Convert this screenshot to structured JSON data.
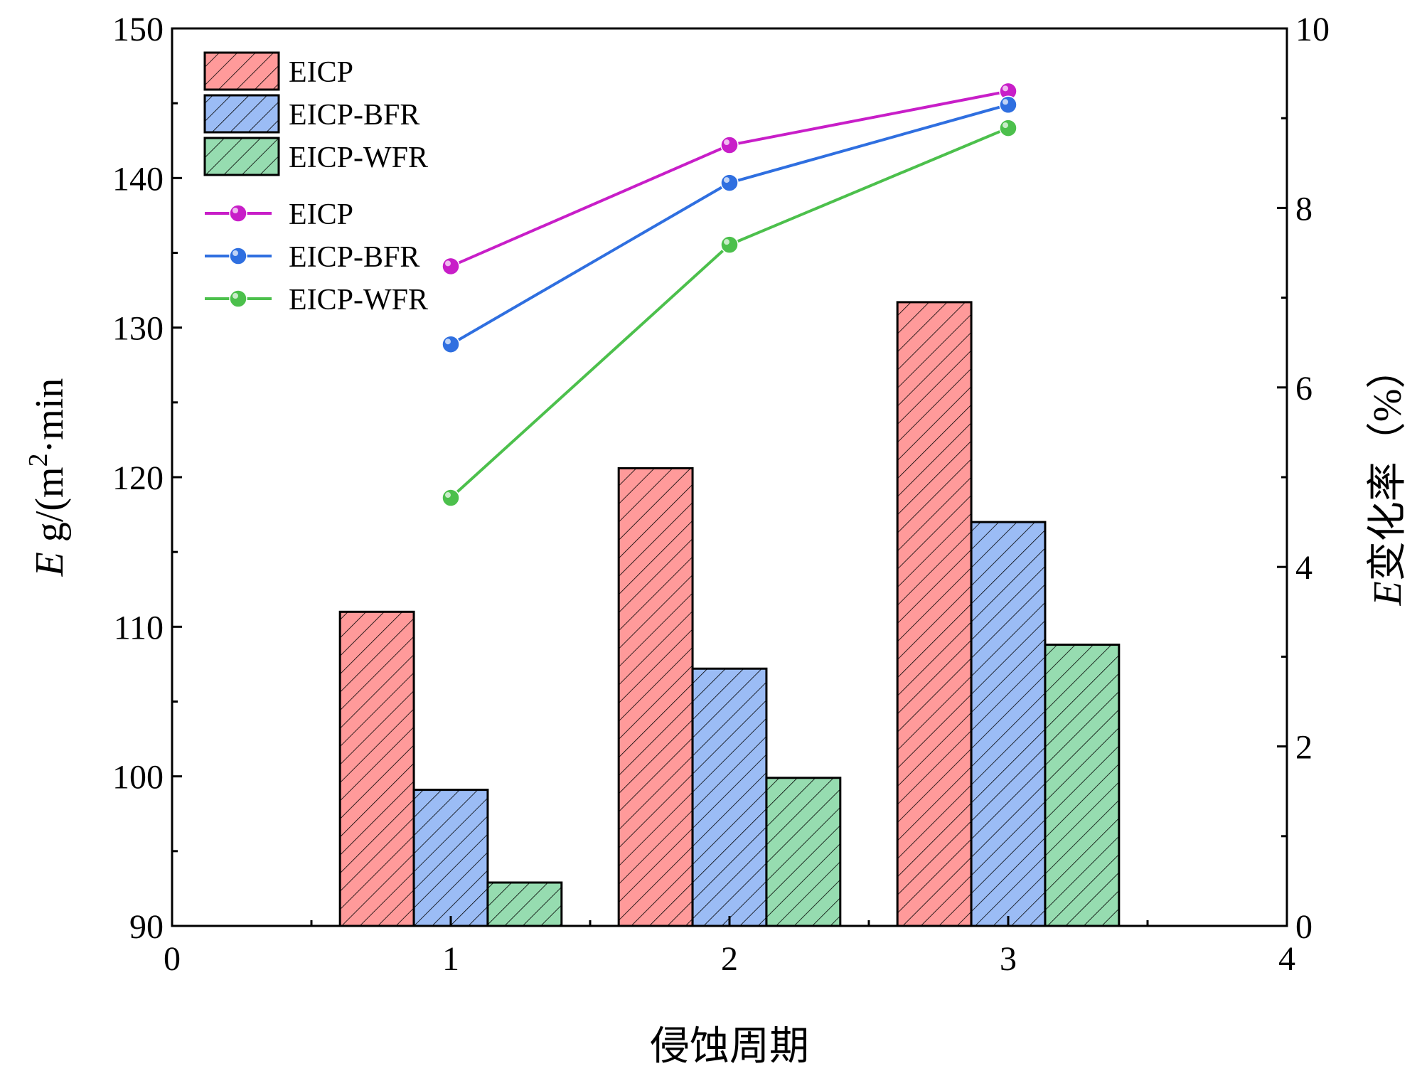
{
  "chart_data": {
    "type": "bar",
    "categories": [
      "1",
      "2",
      "3"
    ],
    "xlabel": "侵蚀周期",
    "ylabel_left": {
      "italic": "E",
      "text": " g/(m",
      "sup": "2",
      "suffix": "·min"
    },
    "ylabel_right": {
      "italic": "E",
      "text": "变化率（%）"
    },
    "xlim": [
      0,
      4
    ],
    "xticks": [
      "0",
      "1",
      "2",
      "3",
      "4"
    ],
    "ylim_left": [
      90,
      150
    ],
    "yticks_left": [
      "90",
      "100",
      "110",
      "120",
      "130",
      "140",
      "150"
    ],
    "ylim_right": [
      0,
      10
    ],
    "yticks_right": [
      "0",
      "2",
      "4",
      "6",
      "8",
      "10"
    ],
    "bar_series": [
      {
        "name": "EICP",
        "color": "#ff9a9a",
        "values": [
          111.0,
          120.6,
          131.7
        ]
      },
      {
        "name": "EICP-BFR",
        "color": "#9bbcf5",
        "values": [
          99.1,
          107.2,
          117.0
        ]
      },
      {
        "name": "EICP-WFR",
        "color": "#96dcb0",
        "values": [
          92.9,
          99.9,
          108.8
        ]
      }
    ],
    "line_series": [
      {
        "name": "EICP",
        "color": "#c81ec8",
        "values": [
          7.35,
          8.7,
          9.3
        ]
      },
      {
        "name": "EICP-BFR",
        "color": "#2f6fe0",
        "values": [
          6.48,
          8.28,
          9.15
        ]
      },
      {
        "name": "EICP-WFR",
        "color": "#4cc04c",
        "values": [
          4.77,
          7.59,
          8.89
        ]
      }
    ]
  }
}
